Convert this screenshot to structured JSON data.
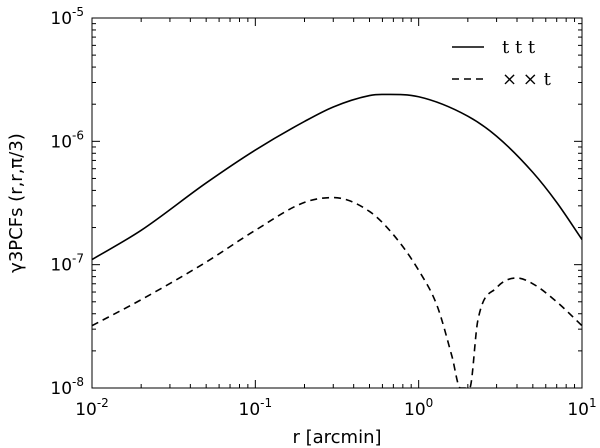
{
  "chart_data": {
    "type": "line",
    "xscale": "log",
    "yscale": "log",
    "xlim": [
      0.01,
      10
    ],
    "ylim": [
      1e-08,
      1e-05
    ],
    "xlabel": "r [arcmin]",
    "ylabel": "γ3PCFs (r,r,π/3)",
    "x_ticks": [
      {
        "base": "10",
        "exp": "-2",
        "value": 0.01
      },
      {
        "base": "10",
        "exp": "-1",
        "value": 0.1
      },
      {
        "base": "10",
        "exp": "0",
        "value": 1
      },
      {
        "base": "10",
        "exp": "1",
        "value": 10
      }
    ],
    "y_ticks": [
      {
        "base": "10",
        "exp": "-8",
        "value": 1e-08
      },
      {
        "base": "10",
        "exp": "-7",
        "value": 1e-07
      },
      {
        "base": "10",
        "exp": "-6",
        "value": 1e-06
      },
      {
        "base": "10",
        "exp": "-5",
        "value": 1e-05
      }
    ],
    "legend": "top-right",
    "grid": false,
    "series": [
      {
        "name": "t t t",
        "style": "solid",
        "color": "#000000",
        "x": [
          0.01,
          0.02,
          0.05,
          0.1,
          0.2,
          0.3,
          0.5,
          0.6,
          1.0,
          2.0,
          3.0,
          5.0,
          7.0,
          10.0
        ],
        "y": [
          1.1e-07,
          1.9e-07,
          4.6e-07,
          8.5e-07,
          1.45e-06,
          1.9e-06,
          2.35e-06,
          2.4e-06,
          2.3e-06,
          1.6e-06,
          1.1e-06,
          5.6e-07,
          3.2e-07,
          1.6e-07
        ]
      },
      {
        "name": "× × t",
        "style": "dashed",
        "color": "#000000",
        "x": [
          0.01,
          0.02,
          0.05,
          0.1,
          0.2,
          0.3,
          0.5,
          0.7,
          1.0,
          1.3,
          1.6,
          1.8,
          2.05,
          2.3,
          3.0,
          4.0,
          5.0,
          7.0,
          10.0
        ],
        "y": [
          3.2e-08,
          5.2e-08,
          1.05e-07,
          1.9e-07,
          3.2e-07,
          3.5e-07,
          2.7e-07,
          1.75e-07,
          9e-08,
          4.6e-08,
          1.8e-08,
          1e-08,
          1e-08,
          3.5e-08,
          6.5e-08,
          7.8e-08,
          7e-08,
          5e-08,
          3.2e-08
        ]
      }
    ]
  }
}
